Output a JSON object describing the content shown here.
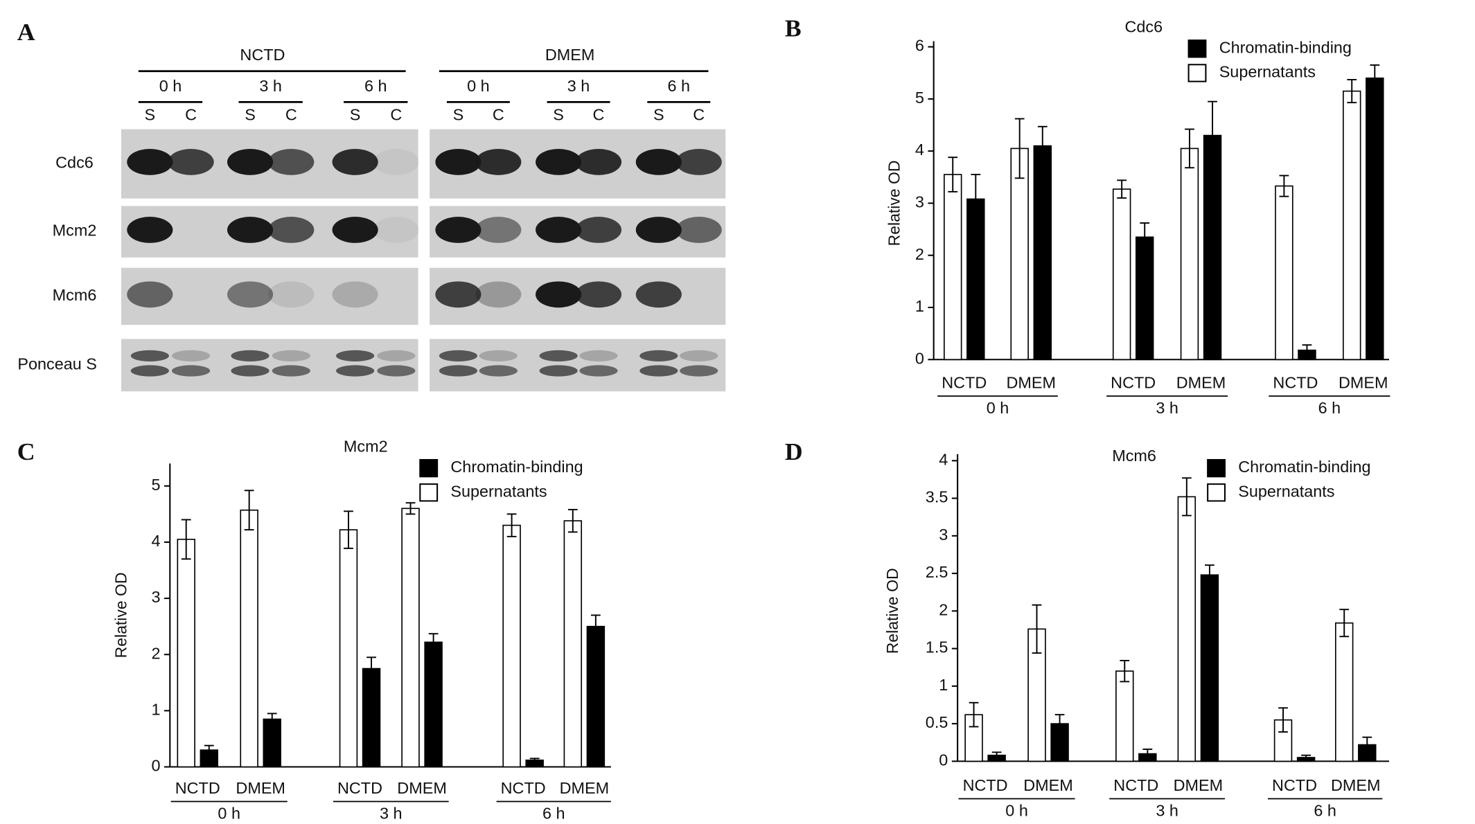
{
  "panels": {
    "a": "A",
    "b": "B",
    "c": "C",
    "d": "D"
  },
  "blot": {
    "conditions": [
      {
        "name": "NCTD",
        "times": [
          "0 h",
          "3 h",
          "6 h"
        ]
      },
      {
        "name": "DMEM",
        "times": [
          "0 h",
          "3 h",
          "6 h"
        ]
      }
    ],
    "lanes": [
      "S",
      "C"
    ],
    "rows": [
      "Cdc6",
      "Mcm2",
      "Mcm6",
      "Ponceau S"
    ]
  },
  "chart_data": [
    {
      "type": "bar",
      "title": "Cdc6",
      "y_label": "Relative OD",
      "categories": [
        "NCTD",
        "DMEM",
        "NCTD",
        "DMEM",
        "NCTD",
        "DMEM"
      ],
      "groups": [
        "0 h",
        "3 h",
        "6 h"
      ],
      "series": [
        {
          "name": "Chromatin-binding",
          "color": "#000000",
          "values": [
            3.08,
            4.1,
            2.35,
            4.3,
            0.18,
            5.4
          ],
          "errors": [
            0.47,
            0.37,
            0.27,
            0.65,
            0.1,
            0.25
          ]
        },
        {
          "name": "Supernatants",
          "color": "#ffffff",
          "values": [
            3.55,
            4.05,
            3.27,
            4.05,
            3.33,
            5.15
          ],
          "errors": [
            0.33,
            0.57,
            0.17,
            0.37,
            0.2,
            0.22
          ]
        }
      ],
      "ylim": [
        0,
        6
      ],
      "yticks": [
        0,
        1,
        2,
        3,
        4,
        5,
        6
      ],
      "legend": "upper right"
    },
    {
      "type": "bar",
      "title": "Mcm2",
      "y_label": "Relative OD",
      "categories": [
        "NCTD",
        "DMEM",
        "NCTD",
        "DMEM",
        "NCTD",
        "DMEM"
      ],
      "groups": [
        "0 h",
        "3 h",
        "6 h"
      ],
      "series": [
        {
          "name": "Chromatin-binding",
          "color": "#000000",
          "values": [
            0.3,
            0.85,
            1.75,
            2.22,
            0.12,
            2.5
          ],
          "errors": [
            0.08,
            0.1,
            0.2,
            0.15,
            0.03,
            0.2
          ]
        },
        {
          "name": "Supernatants",
          "color": "#ffffff",
          "values": [
            4.05,
            4.57,
            4.22,
            4.6,
            4.3,
            4.38
          ],
          "errors": [
            0.35,
            0.35,
            0.33,
            0.1,
            0.2,
            0.2
          ]
        }
      ],
      "ylim": [
        0,
        5.4
      ],
      "yticks": [
        0,
        1,
        2,
        3,
        4,
        5
      ],
      "legend": "upper center"
    },
    {
      "type": "bar",
      "title": "Mcm6",
      "y_label": "Relative OD",
      "categories": [
        "NCTD",
        "DMEM",
        "NCTD",
        "DMEM",
        "NCTD",
        "DMEM"
      ],
      "groups": [
        "0 h",
        "3 h",
        "6 h"
      ],
      "series": [
        {
          "name": "Chromatin-binding",
          "color": "#000000",
          "values": [
            0.08,
            0.5,
            0.1,
            2.48,
            0.05,
            0.22
          ],
          "errors": [
            0.04,
            0.12,
            0.06,
            0.13,
            0.03,
            0.1
          ]
        },
        {
          "name": "Supernatants",
          "color": "#ffffff",
          "values": [
            0.62,
            1.76,
            1.2,
            3.52,
            0.55,
            1.84
          ],
          "errors": [
            0.16,
            0.32,
            0.14,
            0.25,
            0.16,
            0.18
          ]
        }
      ],
      "ylim": [
        0,
        4
      ],
      "yticks": [
        0,
        0.5,
        1,
        1.5,
        2,
        2.5,
        3,
        3.5,
        4
      ],
      "legend": "upper center"
    }
  ]
}
